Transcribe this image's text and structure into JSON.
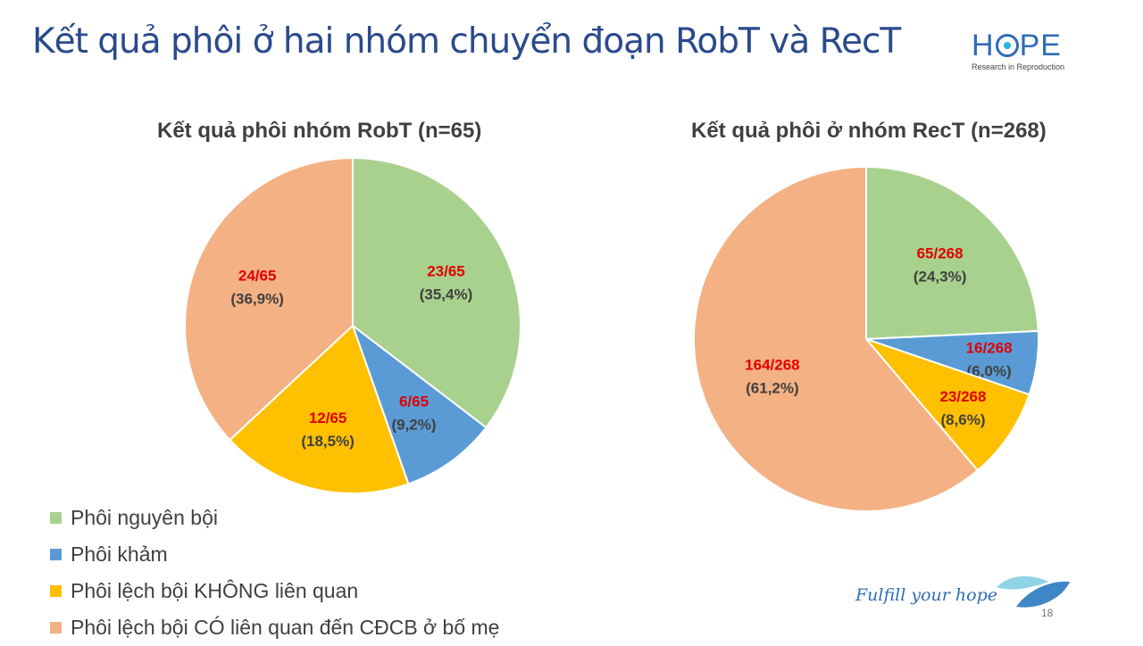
{
  "slide": {
    "title": "Kết quả phôi ở hai nhóm chuyển đoạn RobT và RecT",
    "logo_text_before": "H",
    "logo_text_after": "PE",
    "logo_tagline": "Research in Reproduction",
    "footer_tagline": "Fulfill your hope",
    "page_number": "18"
  },
  "legend": [
    {
      "label": "Phôi nguyên bội",
      "color": "#a9d18e"
    },
    {
      "label": "Phôi khảm",
      "color": "#5b9bd5"
    },
    {
      "label": "Phôi lệch bội KHÔNG liên quan",
      "color": "#ffc000"
    },
    {
      "label": "Phôi lệch bội CÓ liên quan đến CĐCB ở bố mẹ",
      "color": "#f4b183"
    }
  ],
  "chart_data": [
    {
      "type": "pie",
      "title": "Kết quả phôi nhóm RobT (n=65)",
      "categories": [
        "Phôi nguyên bội",
        "Phôi khảm",
        "Phôi lệch bội KHÔNG liên quan",
        "Phôi lệch bội CÓ liên quan đến CĐCB ở bố mẹ"
      ],
      "values": [
        23,
        6,
        12,
        24
      ],
      "labels_count": [
        "23/65",
        "6/65",
        "12/65",
        "24/65"
      ],
      "labels_percent": [
        "(35,4%)",
        "(9,2%)",
        "(18,5%)",
        "(36,9%)"
      ],
      "colors": [
        "#a9d18e",
        "#5b9bd5",
        "#ffc000",
        "#f4b183"
      ]
    },
    {
      "type": "pie",
      "title": "Kết quả phôi ở nhóm RecT (n=268)",
      "categories": [
        "Phôi nguyên bội",
        "Phôi khảm",
        "Phôi lệch bội KHÔNG liên quan",
        "Phôi lệch bội CÓ liên quan đến CĐCB ở bố mẹ"
      ],
      "values": [
        65,
        16,
        23,
        164
      ],
      "labels_count": [
        "65/268",
        "16/268",
        "23/268",
        "164/268"
      ],
      "labels_percent": [
        "(24,3%)",
        "(6,0%)",
        "(8,6%)",
        "(61,2%)"
      ],
      "colors": [
        "#a9d18e",
        "#5b9bd5",
        "#ffc000",
        "#f4b183"
      ]
    }
  ]
}
